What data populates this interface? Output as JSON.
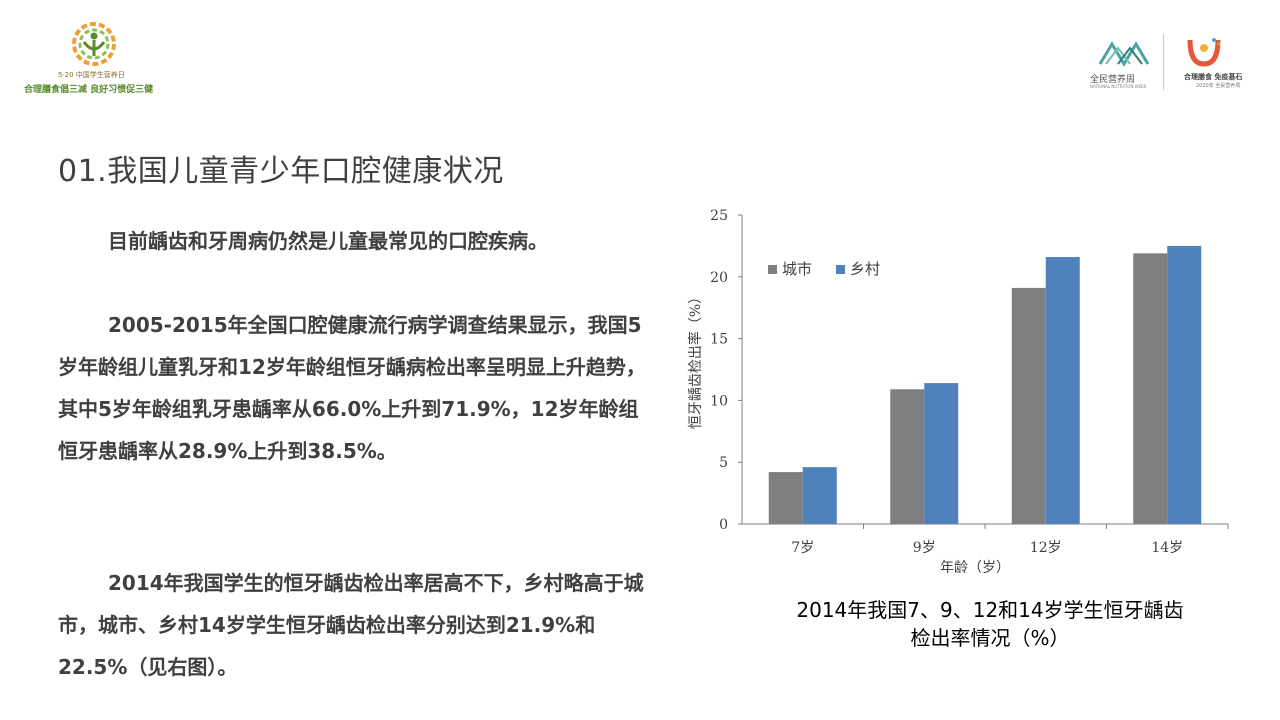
{
  "logos": {
    "left_subtitle": "5·20 中国学生营养日",
    "left_slogan": "合理膳食倡三减  良好习惯促三健",
    "right_nnw": "全民营养周",
    "right_nnw_en": "NATIONAL NUTRITION WEEK",
    "right_nw": "合理膳食 免疫基石",
    "right_nw_sub": "2020年 全民营养周"
  },
  "title": "01.我国儿童青少年口腔健康状况",
  "paragraphs": [
    "目前龋齿和牙周病仍然是儿童最常见的口腔疾病。",
    "2005-2015年全国口腔健康流行病学调查结果显示，我国5岁年龄组儿童乳牙和12岁年龄组恒牙龋病检出率呈明显上升趋势，其中5岁年龄组乳牙患龋率从66.0%上升到71.9%，12岁年龄组恒牙患龋率从28.9%上升到38.5%。",
    "2014年我国学生的恒牙龋齿检出率居高不下，乡村略高于城市，城市、乡村14岁学生恒牙龋齿检出率分别达到21.9%和22.5%（见右图）。"
  ],
  "caption": {
    "line1": "2014年我国7、9、12和14岁学生恒牙龋齿",
    "line2": "检出率情况（%）"
  },
  "chart_data": {
    "type": "bar",
    "categories": [
      "7岁",
      "9岁",
      "12岁",
      "14岁"
    ],
    "series": [
      {
        "name": "城市",
        "values": [
          4.2,
          10.9,
          19.1,
          21.9
        ],
        "color": "#7f7f7f"
      },
      {
        "name": "乡村",
        "values": [
          4.6,
          11.4,
          21.6,
          22.5
        ],
        "color": "#4f81bd"
      }
    ],
    "xlabel": "年龄（岁）",
    "ylabel": "恒牙龋齿检出率（%）",
    "ylim": [
      0,
      25
    ],
    "yticks": [
      0,
      5,
      10,
      15,
      20,
      25
    ],
    "grid": false,
    "legend_position": "top-left"
  }
}
